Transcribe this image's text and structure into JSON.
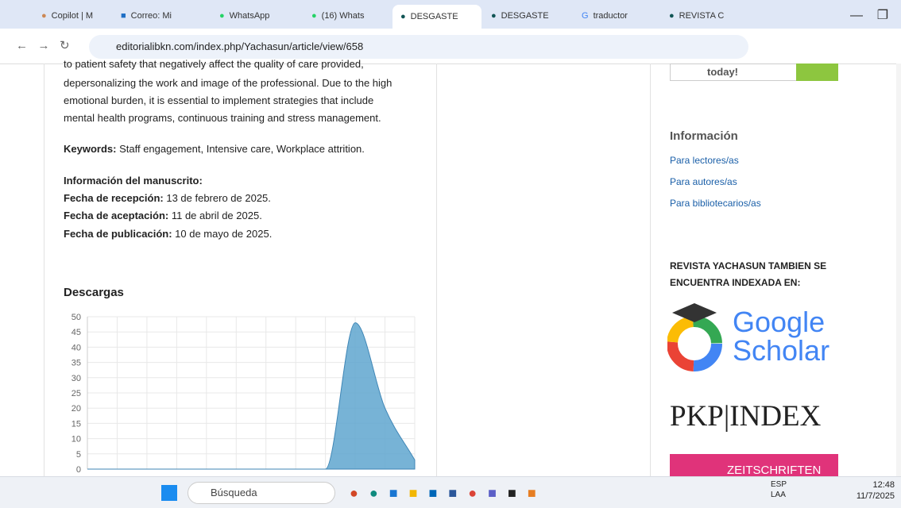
{
  "browser": {
    "tabs": [
      "Copilot | M",
      "Correo: Mi",
      "WhatsApp",
      "(16) Whats",
      "DESGASTE",
      "DESGASTE",
      "traductor",
      "REVISTA C"
    ],
    "url": "editorialibkn.com/index.php/Yachasun/article/view/658"
  },
  "article": {
    "abstract_lines": [
      "to patient safety that negatively affect the quality of care provided,",
      "depersonalizing the work and image of the professional. Due to the high",
      "emotional burden, it is essential to implement strategies that include",
      "mental health programs, continuous training and stress management."
    ],
    "keywords_label": "Keywords:",
    "keywords": "Staff engagement, Intensive care, Workplace attrition.",
    "manuscript_heading": "Información del manuscrito:",
    "dates": [
      {
        "label": "Fecha de recepción:",
        "value": "13 de febrero de 2025."
      },
      {
        "label": "Fecha de aceptación:",
        "value": "11 de abril de 2025."
      },
      {
        "label": "Fecha de publicación:",
        "value": "10 de mayo de 2025."
      }
    ],
    "downloads": {
      "type": "area",
      "title": "Descargas",
      "color": "#5fa6cf",
      "values": [
        0,
        0,
        0,
        0,
        0,
        0,
        0,
        0,
        0,
        48,
        20,
        3
      ],
      "ylim": [
        0,
        50
      ],
      "yticks": [
        0,
        5,
        10,
        15,
        20,
        25,
        30,
        35,
        40,
        45,
        50
      ],
      "grid": true
    }
  },
  "sidebar": {
    "button": "today!",
    "info_heading": "Información",
    "links": [
      "Para lectores/as",
      "Para autores/as",
      "Para bibliotecarios/as"
    ],
    "indexed_lines": [
      "REVISTA YACHASUN TAMBIEN SE",
      "ENCUENTRA INDEXADA EN:"
    ],
    "logos": [
      "Google",
      "Scholar",
      "PKP|INDEX",
      "ZEITSCHRIFTEN"
    ]
  },
  "taskbar": {
    "search": "Búsqueda",
    "lang": [
      "ESP",
      "LAA"
    ],
    "time": "12:48",
    "date": "11/7/2025"
  }
}
